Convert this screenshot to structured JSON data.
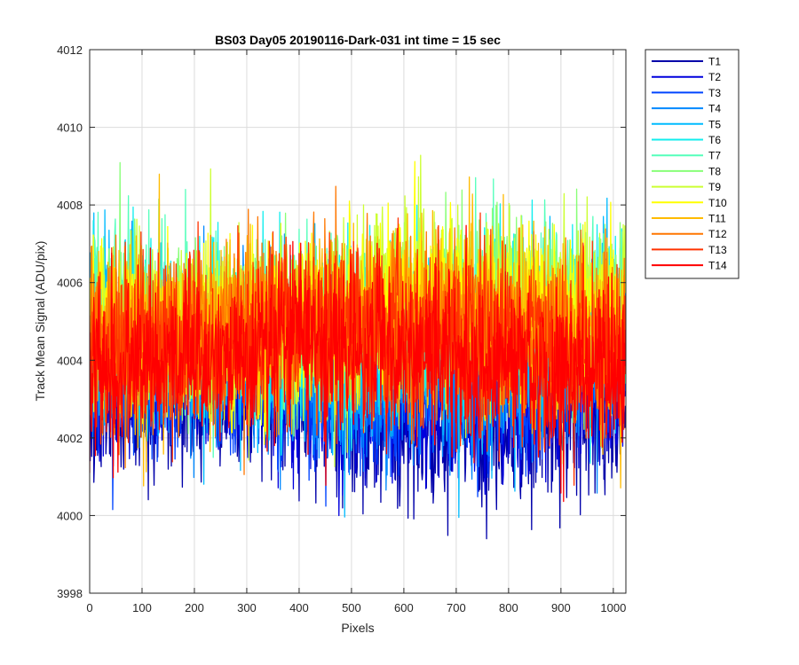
{
  "chart_data": {
    "type": "line",
    "title": "BS03 Day05 20190116-Dark-031 int time = 15 sec",
    "xlabel": "Pixels",
    "ylabel": "Track Mean Signal (ADU/pix)",
    "xlim": [
      0,
      1024
    ],
    "ylim": [
      3998,
      4012
    ],
    "xticks": [
      0,
      100,
      200,
      300,
      400,
      500,
      600,
      700,
      800,
      900,
      1000
    ],
    "yticks": [
      3998,
      4000,
      4002,
      4004,
      4006,
      4008,
      4010,
      4012
    ],
    "grid": true,
    "legend_position": "outside-top-right",
    "n_points": 1024,
    "series": [
      {
        "name": "T1",
        "color": "#0000aa",
        "mean": 4002.6,
        "spread": 1.0
      },
      {
        "name": "T2",
        "color": "#0000dd",
        "mean": 4003.1,
        "spread": 1.0
      },
      {
        "name": "T3",
        "color": "#0044ff",
        "mean": 4003.4,
        "spread": 1.0
      },
      {
        "name": "T4",
        "color": "#0088ff",
        "mean": 4003.8,
        "spread": 1.1
      },
      {
        "name": "T5",
        "color": "#00bbff",
        "mean": 4004.4,
        "spread": 1.2
      },
      {
        "name": "T6",
        "color": "#11eeee",
        "mean": 4004.8,
        "spread": 1.2
      },
      {
        "name": "T7",
        "color": "#55ffbb",
        "mean": 4005.0,
        "spread": 1.2
      },
      {
        "name": "T8",
        "color": "#88ff77",
        "mean": 4005.1,
        "spread": 1.2
      },
      {
        "name": "T9",
        "color": "#ccff33",
        "mean": 4005.2,
        "spread": 1.2
      },
      {
        "name": "T10",
        "color": "#ffff00",
        "mean": 4005.1,
        "spread": 1.2
      },
      {
        "name": "T11",
        "color": "#ffbb00",
        "mean": 4004.9,
        "spread": 1.2
      },
      {
        "name": "T12",
        "color": "#ff7700",
        "mean": 4004.7,
        "spread": 1.2
      },
      {
        "name": "T13",
        "color": "#ff3300",
        "mean": 4004.5,
        "spread": 1.2
      },
      {
        "name": "T14",
        "color": "#ff0000",
        "mean": 4004.1,
        "spread": 1.1
      }
    ]
  }
}
